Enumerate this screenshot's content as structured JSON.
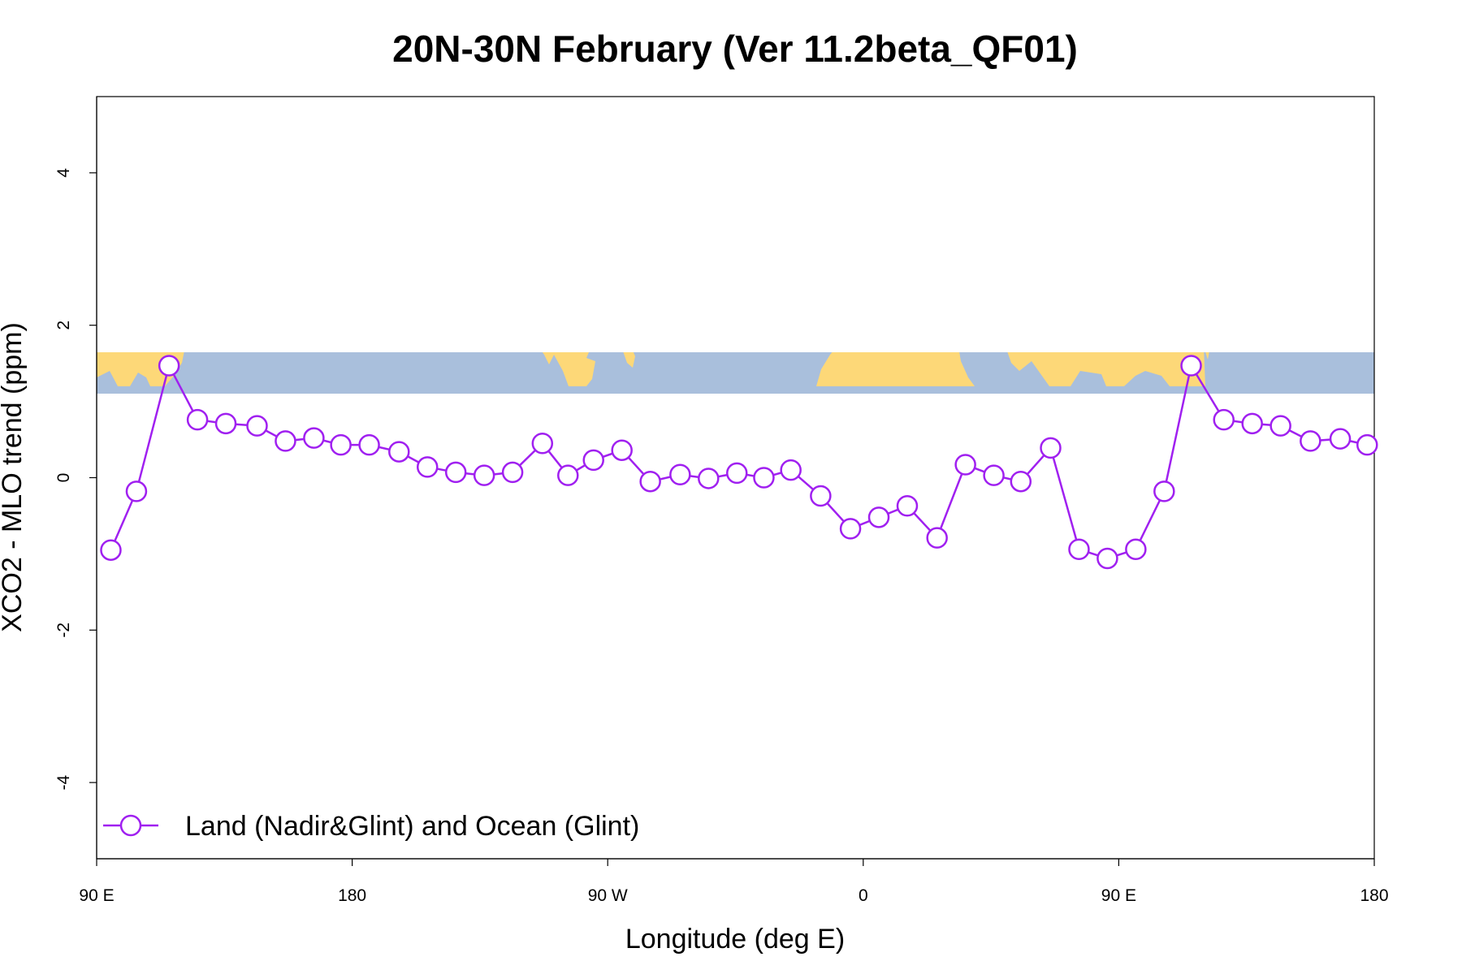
{
  "chart_data": {
    "type": "line",
    "title": "20N-30N February (Ver 11.2beta_QF01)",
    "xlabel": "Longitude (deg E)",
    "ylabel": "XCO2 - MLO trend (ppm)",
    "xlim": [
      90,
      540
    ],
    "ylim": [
      -5,
      5
    ],
    "x_ticks": [
      {
        "value": 90,
        "label": "90 E"
      },
      {
        "value": 180,
        "label": "180"
      },
      {
        "value": 270,
        "label": "90 W"
      },
      {
        "value": 360,
        "label": "0"
      },
      {
        "value": 450,
        "label": "90 E"
      },
      {
        "value": 540,
        "label": "180"
      }
    ],
    "y_ticks": [
      {
        "value": 4,
        "label": "4"
      },
      {
        "value": 2,
        "label": "2"
      },
      {
        "value": 0,
        "label": "0"
      },
      {
        "value": -2,
        "label": "-2"
      },
      {
        "value": -4,
        "label": "-4"
      }
    ],
    "map_strip": {
      "y_from": 1.2,
      "y_to": 1.72,
      "ocean_color": "#a9bfdc",
      "land_color": "#fdd878"
    },
    "series": [
      {
        "name": "Land (Nadir&Glint) and Ocean (Glint)",
        "color": "#a020f0",
        "x": [
          95,
          104,
          115.5,
          125.5,
          135.5,
          146.5,
          156.5,
          166.5,
          176,
          186,
          196.5,
          206.5,
          216.5,
          226.5,
          236.5,
          247,
          256,
          265,
          275,
          285,
          295.5,
          305.5,
          315.5,
          325,
          334.5,
          345,
          355.5,
          365.5,
          375.5,
          386,
          396,
          406,
          415.5,
          426,
          436,
          446,
          456,
          466,
          475.5,
          487,
          497,
          507,
          517.5,
          528,
          537.5
        ],
        "y": [
          -0.95,
          -0.18,
          1.47,
          0.76,
          0.71,
          0.68,
          0.48,
          0.52,
          0.43,
          0.43,
          0.34,
          0.14,
          0.07,
          0.03,
          0.07,
          0.45,
          0.03,
          0.23,
          0.36,
          -0.05,
          0.04,
          -0.01,
          0.06,
          0.0,
          0.1,
          -0.24,
          -0.67,
          -0.52,
          -0.37,
          -0.79,
          0.17,
          0.03,
          -0.05,
          0.39,
          -0.94,
          -1.06,
          -0.94,
          -0.18,
          1.47,
          0.76,
          0.71,
          0.68,
          0.48,
          0.51,
          0.43
        ]
      }
    ],
    "legend": {
      "label": "Land (Nadir&Glint) and Ocean (Glint)",
      "position": "bottom-left"
    }
  }
}
